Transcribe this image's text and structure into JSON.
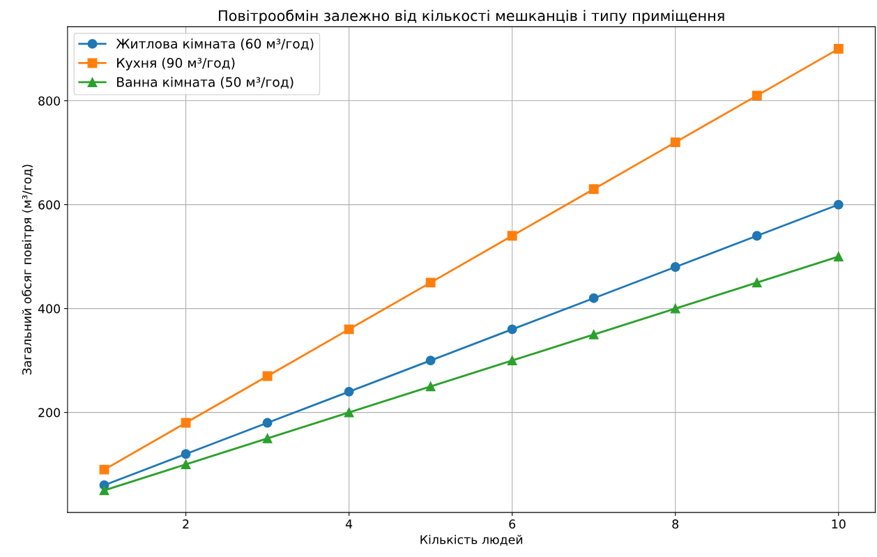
{
  "chart_data": {
    "type": "line",
    "title": "Повітрообмін залежно від кількості мешканців і типу приміщення",
    "xlabel": "Кількість людей",
    "ylabel": "Загальний обсяг повітря (м³/год)",
    "x": [
      1,
      2,
      3,
      4,
      5,
      6,
      7,
      8,
      9,
      10
    ],
    "series": [
      {
        "name": "Житлова кімната (60 м³/год)",
        "color": "#1f77b4",
        "marker": "circle",
        "values": [
          60,
          120,
          180,
          240,
          300,
          360,
          420,
          480,
          540,
          600
        ]
      },
      {
        "name": "Кухня (90 м³/год)",
        "color": "#ff7f0e",
        "marker": "square",
        "values": [
          90,
          180,
          270,
          360,
          450,
          540,
          630,
          720,
          810,
          900
        ]
      },
      {
        "name": "Ванна кімната (50 м³/год)",
        "color": "#2ca02c",
        "marker": "triangle",
        "values": [
          50,
          100,
          150,
          200,
          250,
          300,
          350,
          400,
          450,
          500
        ]
      }
    ],
    "xlim": [
      0.55,
      10.45
    ],
    "ylim": [
      7.5,
      942.5
    ],
    "xticks": [
      2,
      4,
      6,
      8,
      10
    ],
    "yticks": [
      200,
      400,
      600,
      800
    ],
    "grid": true,
    "legend": "top left",
    "line_style": "solid"
  }
}
